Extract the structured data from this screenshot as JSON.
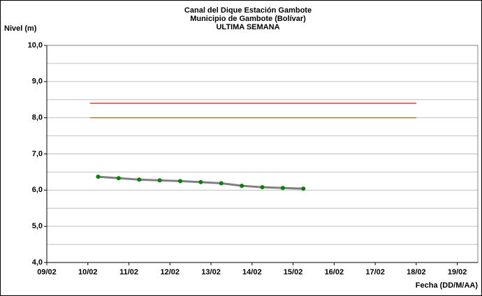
{
  "chart_data": {
    "type": "line",
    "title": [
      "Canal del Dique  Estación Gambote",
      "Municipio de Gambote (Bolívar)",
      "ULTIMA SEMANA"
    ],
    "ylabel": "Nivel (m)",
    "xlabel": "Fecha (DD/M/AA)",
    "xlim": [
      9,
      19.5
    ],
    "ylim": [
      4,
      10
    ],
    "xticks": [
      {
        "value": 9,
        "label": "09/02"
      },
      {
        "value": 10,
        "label": "10/02"
      },
      {
        "value": 11,
        "label": "11/02"
      },
      {
        "value": 12,
        "label": "12/02"
      },
      {
        "value": 13,
        "label": "13/02"
      },
      {
        "value": 14,
        "label": "14/02"
      },
      {
        "value": 15,
        "label": "15/02"
      },
      {
        "value": 16,
        "label": "16/02"
      },
      {
        "value": 17,
        "label": "17/02"
      },
      {
        "value": 18,
        "label": "18/02"
      },
      {
        "value": 19,
        "label": "19/02"
      }
    ],
    "yticks": [
      {
        "value": 4,
        "label": "4,0"
      },
      {
        "value": 5,
        "label": "5,0"
      },
      {
        "value": 6,
        "label": "6,0"
      },
      {
        "value": 7,
        "label": "7,0"
      },
      {
        "value": 8,
        "label": "8,0"
      },
      {
        "value": 9,
        "label": "9,0"
      },
      {
        "value": 10,
        "label": "10,0"
      }
    ],
    "minor_yticks": [
      4.5,
      5.5,
      6.5,
      7.5,
      8.5,
      9.5
    ],
    "grid": true,
    "series": [
      {
        "color": "#cc0000",
        "x": [
          10.05,
          18.0
        ],
        "values": [
          8.4,
          8.4
        ]
      },
      {
        "color": "#996600",
        "x": [
          10.05,
          18.0
        ],
        "values": [
          8.0,
          8.0
        ]
      },
      {
        "color": "#808080",
        "marker_color": "#008000",
        "x": [
          10.25,
          10.75,
          11.25,
          11.75,
          12.25,
          12.75,
          13.25,
          13.75,
          14.25,
          14.75,
          15.25
        ],
        "values": [
          6.37,
          6.33,
          6.29,
          6.27,
          6.25,
          6.22,
          6.19,
          6.12,
          6.08,
          6.06,
          6.04
        ]
      }
    ]
  }
}
